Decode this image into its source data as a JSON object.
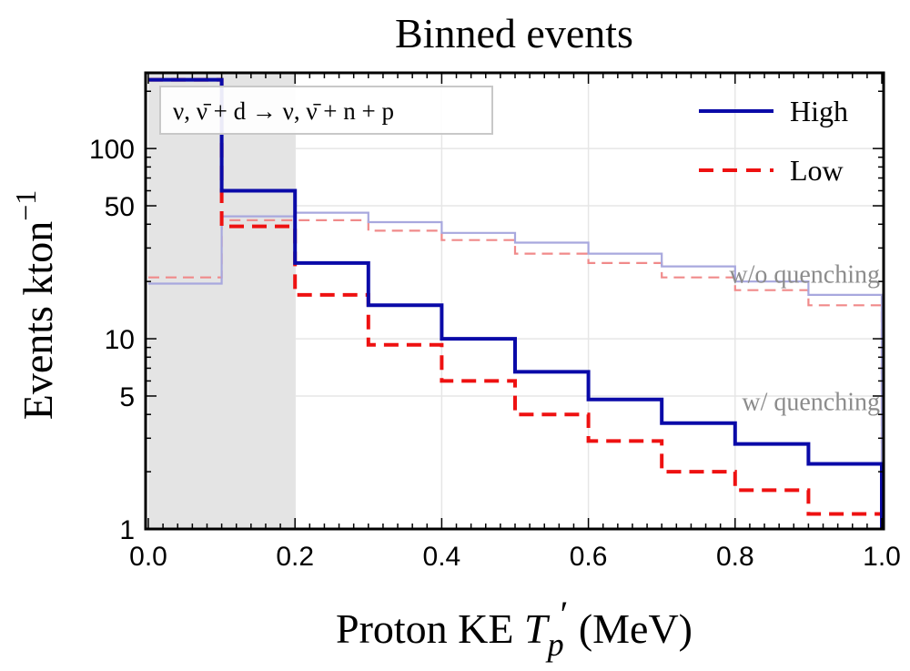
{
  "chart_data": {
    "type": "line",
    "title": "Binned events",
    "xlabel_prefix": "Proton KE ",
    "xlabel_var": "T",
    "xlabel_sub": "p",
    "xlabel_prime": "′",
    "xlabel_unit": " (MeV)",
    "ylabel": "Events  kton",
    "ylabel_sup": "−1",
    "xlim": [
      0,
      1
    ],
    "ylim": [
      1,
      250
    ],
    "yscale": "log",
    "x_ticks": [
      "0.0",
      "0.2",
      "0.4",
      "0.6",
      "0.8",
      "1.0"
    ],
    "y_ticks": [
      "1",
      "5",
      "10",
      "50",
      "100"
    ],
    "grid": true,
    "shaded_region": {
      "x": [
        0.0,
        0.2
      ]
    },
    "bin_edges": [
      0.0,
      0.1,
      0.2,
      0.3,
      0.4,
      0.5,
      0.6,
      0.7,
      0.8,
      0.9,
      1.0
    ],
    "reaction_label": "ν, ν̄ + d  → ν, ν̄  + n  + p",
    "annotations": [
      {
        "text": "w/o quenching",
        "x": 1.0,
        "y": 22
      },
      {
        "text": "w/ quenching",
        "x": 1.0,
        "y": 4.7
      }
    ],
    "legend_position": "top-right",
    "series": [
      {
        "name": "High",
        "style": "solid",
        "color": "#0a0aa8",
        "quenched": true,
        "values": [
          230,
          60,
          25,
          15,
          10,
          6.7,
          4.8,
          3.6,
          2.8,
          2.2
        ]
      },
      {
        "name": "Low",
        "style": "dashed",
        "color": "#ee1111",
        "quenched": true,
        "values": [
          230,
          39,
          17,
          9.3,
          6.0,
          4.0,
          2.9,
          2.0,
          1.6,
          1.2
        ]
      },
      {
        "style": "solid",
        "color": "#a8a8de",
        "quenched": false,
        "values": [
          19.5,
          44,
          46,
          41,
          36,
          32,
          28,
          24,
          20,
          17
        ]
      },
      {
        "style": "dashed",
        "color": "#f08a8a",
        "quenched": false,
        "values": [
          21,
          42,
          42,
          37,
          33,
          28,
          25,
          21,
          18,
          15
        ]
      }
    ]
  }
}
